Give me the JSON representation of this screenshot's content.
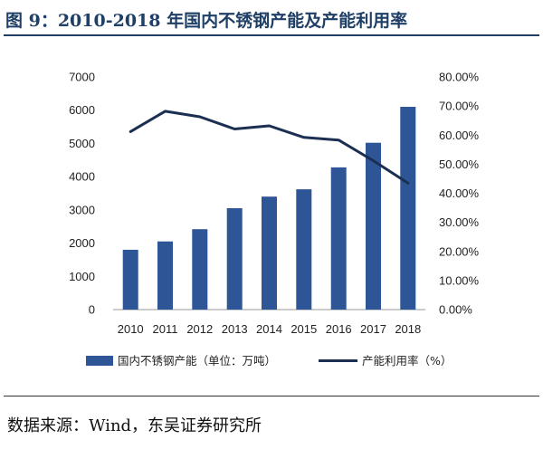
{
  "title": "图 9：2010-2018 年国内不锈钢产能及产能利用率",
  "source": "数据来源：Wind，东吴证券研究所",
  "colors": {
    "bar": "#2e5596",
    "line": "#1b2f52",
    "title": "#1f3f66"
  },
  "chart_data": {
    "type": "bar",
    "categories": [
      "2010",
      "2011",
      "2012",
      "2013",
      "2014",
      "2015",
      "2016",
      "2017",
      "2018"
    ],
    "series": [
      {
        "name": "国内不锈钢产能（单位：万吨）",
        "type": "bar",
        "axis": "left",
        "values": [
          1800,
          2050,
          2420,
          3050,
          3400,
          3620,
          4280,
          5020,
          6100
        ]
      },
      {
        "name": "产能利用率（%）",
        "type": "line",
        "axis": "right",
        "values": [
          61.2,
          68.2,
          66.3,
          62.1,
          63.2,
          59.2,
          58.3,
          51.2,
          43.5
        ]
      }
    ],
    "y_left": {
      "ylim": [
        0,
        7000
      ],
      "ticks": [
        "0",
        "1000",
        "2000",
        "3000",
        "4000",
        "5000",
        "6000",
        "7000"
      ]
    },
    "y_right": {
      "ylim": [
        0,
        80
      ],
      "ticks": [
        "0.00%",
        "10.00%",
        "20.00%",
        "30.00%",
        "40.00%",
        "50.00%",
        "60.00%",
        "70.00%",
        "80.00%"
      ]
    },
    "grid": false,
    "legend_position": "bottom"
  }
}
